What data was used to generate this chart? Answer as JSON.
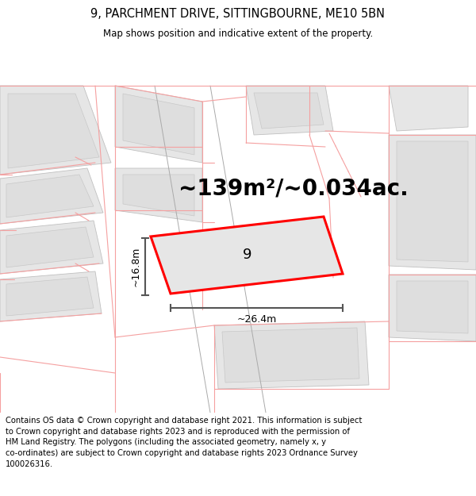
{
  "title": "9, PARCHMENT DRIVE, SITTINGBOURNE, ME10 5BN",
  "subtitle": "Map shows position and indicative extent of the property.",
  "area_text": "~139m²/~0.034ac.",
  "dim_width": "~26.4m",
  "dim_height": "~16.8m",
  "property_label": "9",
  "footer_text": "Contains OS data © Crown copyright and database right 2021. This information is subject\nto Crown copyright and database rights 2023 and is reproduced with the permission of\nHM Land Registry. The polygons (including the associated geometry, namely x, y\nco-ordinates) are subject to Crown copyright and database rights 2023 Ordnance Survey\n100026316.",
  "map_bg": "#ffffff",
  "building_fill": "#e8e8e8",
  "building_edge": "#c8c8c8",
  "pink_line": "#f5a0a0",
  "pink_line_lw": 0.8,
  "property_fill": "#e8e8e8",
  "property_edge": "#ff0000",
  "property_edge_lw": 2.2,
  "dark_line_color": "#555555",
  "title_fontsize": 10.5,
  "subtitle_fontsize": 8.5,
  "area_fontsize": 20,
  "dim_fontsize": 9,
  "label_fontsize": 13,
  "footer_fontsize": 7.2
}
